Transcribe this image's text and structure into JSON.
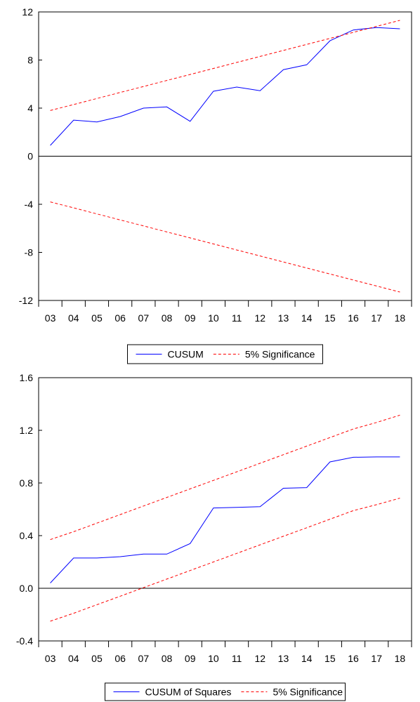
{
  "chart_data": [
    {
      "type": "line",
      "x": [
        "03",
        "04",
        "05",
        "06",
        "07",
        "08",
        "09",
        "10",
        "11",
        "12",
        "13",
        "14",
        "15",
        "16",
        "17",
        "18"
      ],
      "ylim": [
        -12,
        12
      ],
      "yticks": [
        12,
        8,
        4,
        0,
        -4,
        -8,
        -12
      ],
      "zero_line": true,
      "grid": false,
      "legend_position": "bottom-center",
      "series": [
        {
          "name": "CUSUM",
          "color": "#0000ff",
          "style": "solid",
          "values": [
            0.9,
            3.0,
            2.85,
            3.3,
            4.0,
            4.1,
            2.9,
            5.4,
            5.75,
            5.45,
            7.2,
            7.6,
            9.6,
            10.5,
            10.7,
            10.6
          ]
        },
        {
          "name": "5% Significance",
          "color": "#ff0000",
          "style": "dashed",
          "values": [
            3.8,
            4.3,
            4.8,
            5.3,
            5.8,
            6.3,
            6.8,
            7.3,
            7.8,
            8.3,
            8.8,
            9.3,
            9.8,
            10.3,
            10.8,
            11.3
          ]
        },
        {
          "name": "",
          "color": "#ff0000",
          "style": "dashed",
          "values": [
            -3.8,
            -4.3,
            -4.8,
            -5.3,
            -5.8,
            -6.3,
            -6.8,
            -7.3,
            -7.8,
            -8.3,
            -8.8,
            -9.3,
            -9.8,
            -10.3,
            -10.8,
            -11.3
          ]
        }
      ]
    },
    {
      "type": "line",
      "x": [
        "03",
        "04",
        "05",
        "06",
        "07",
        "08",
        "09",
        "10",
        "11",
        "12",
        "13",
        "14",
        "15",
        "16",
        "17",
        "18"
      ],
      "ylim": [
        -0.4,
        1.6
      ],
      "yticks": [
        1.6,
        1.2,
        0.8,
        0.4,
        0.0,
        -0.4
      ],
      "ytick_labels": [
        "1.6",
        "1.2",
        "0.8",
        "0.4",
        "0.0",
        "-0.4"
      ],
      "zero_line": true,
      "grid": false,
      "legend_position": "bottom-center",
      "series": [
        {
          "name": "CUSUM of Squares",
          "color": "#0000ff",
          "style": "solid",
          "values": [
            0.04,
            0.23,
            0.23,
            0.24,
            0.26,
            0.26,
            0.34,
            0.61,
            0.615,
            0.62,
            0.76,
            0.765,
            0.96,
            0.995,
            0.998,
            0.998
          ]
        },
        {
          "name": "5% Significance",
          "color": "#ff0000",
          "style": "dashed",
          "values": [
            0.37,
            0.43,
            0.495,
            0.56,
            0.625,
            0.69,
            0.755,
            0.82,
            0.885,
            0.95,
            1.015,
            1.08,
            1.145,
            1.21,
            1.26,
            1.315
          ]
        },
        {
          "name": "",
          "color": "#ff0000",
          "style": "dashed",
          "values": [
            -0.25,
            -0.19,
            -0.125,
            -0.06,
            0.005,
            0.07,
            0.135,
            0.2,
            0.265,
            0.33,
            0.395,
            0.46,
            0.525,
            0.59,
            0.635,
            0.685
          ]
        }
      ]
    }
  ]
}
